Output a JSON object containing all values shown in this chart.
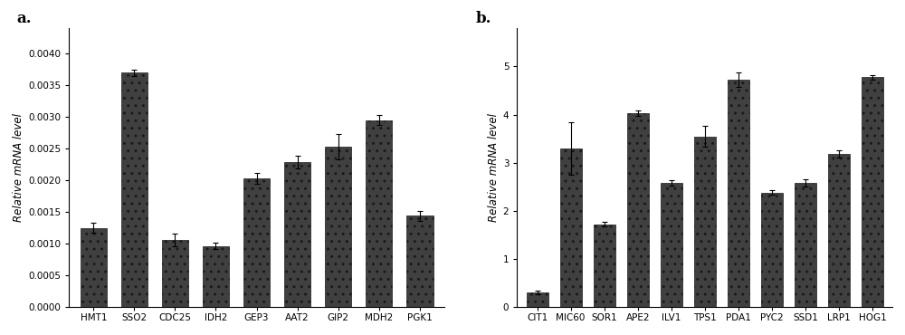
{
  "chart_a": {
    "categories": [
      "HMT1",
      "SSO2",
      "CDC25",
      "IDH2",
      "GEP3",
      "AAT2",
      "GIP2",
      "MDH2",
      "PGK1"
    ],
    "values": [
      0.00125,
      0.0037,
      0.00106,
      0.00096,
      0.00203,
      0.00228,
      0.00253,
      0.00295,
      0.00144
    ],
    "errors": [
      8e-05,
      5e-05,
      0.0001,
      5e-05,
      8e-05,
      0.0001,
      0.0002,
      8e-05,
      8e-05
    ],
    "ylabel": "Relative mRNA level",
    "ylim": [
      0,
      0.0044
    ],
    "yticks": [
      0.0,
      0.0005,
      0.001,
      0.0015,
      0.002,
      0.0025,
      0.003,
      0.0035,
      0.004
    ],
    "label": "a."
  },
  "chart_b": {
    "categories": [
      "CIT1",
      "MIC60",
      "SOR1",
      "APE2",
      "ILV1",
      "TPS1",
      "PDA1",
      "PYC2",
      "SSD1",
      "LRP1",
      "HOG1"
    ],
    "values": [
      0.3,
      3.3,
      1.72,
      4.03,
      2.58,
      3.55,
      4.73,
      2.38,
      2.58,
      3.18,
      4.78
    ],
    "errors": [
      0.04,
      0.55,
      0.05,
      0.06,
      0.05,
      0.22,
      0.15,
      0.05,
      0.08,
      0.08,
      0.05
    ],
    "ylabel": "Relative mRNA level",
    "ylim": [
      0,
      5.8
    ],
    "yticks": [
      0,
      1,
      2,
      3,
      4,
      5
    ],
    "label": "b."
  },
  "bar_color": "#404040",
  "bar_hatch": "..",
  "bar_edgecolor": "#1a1a1a",
  "background_color": "#ffffff",
  "tick_fontsize": 7.5,
  "ylabel_fontsize": 8.5,
  "panel_label_fontsize": 12
}
